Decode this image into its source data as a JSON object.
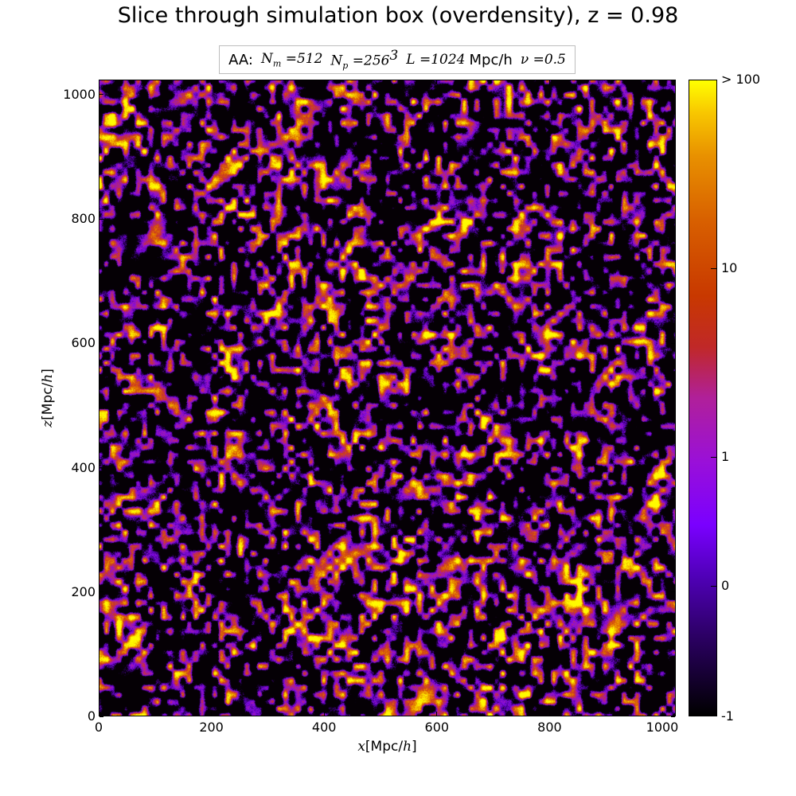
{
  "chart_data": {
    "type": "heatmap",
    "title": "Slice through simulation box (overdensity), z = 0.98",
    "legend": {
      "prefix": "AA:",
      "entries": [
        {
          "symbol": "N",
          "subscript": "m",
          "relation": "=",
          "value": "512"
        },
        {
          "symbol": "N",
          "subscript": "p",
          "relation": "=",
          "value": "256",
          "superscript": "3"
        },
        {
          "symbol": "L",
          "relation": "=",
          "value": "1024",
          "unit": "Mpc/h"
        },
        {
          "symbol": "ν",
          "relation": "=",
          "value": "0.5"
        }
      ],
      "placement": "top-center"
    },
    "xlabel": {
      "var": "x",
      "open": "[",
      "unit": "Mpc/",
      "unit_var": "h",
      "close": "]"
    },
    "ylabel": {
      "var": "z",
      "open": "[",
      "unit": "Mpc/",
      "unit_var": "h",
      "close": "]"
    },
    "xlim": [
      0,
      1024
    ],
    "ylim": [
      0,
      1024
    ],
    "xticks": [
      0,
      200,
      400,
      600,
      800,
      1000
    ],
    "yticks": [
      0,
      200,
      400,
      600,
      800,
      1000
    ],
    "xtick_labels": [
      "0",
      "200",
      "400",
      "600",
      "800",
      "1000"
    ],
    "ytick_labels": [
      "0",
      "200",
      "400",
      "600",
      "800",
      "1000"
    ],
    "colorbar": {
      "label": "",
      "ticks": [
        {
          "value": -1,
          "label": "-1",
          "fraction": 0.0
        },
        {
          "value": 0,
          "label": "0",
          "fraction": 0.205
        },
        {
          "value": 1,
          "label": "1",
          "fraction": 0.408
        },
        {
          "value": 10,
          "label": "10",
          "fraction": 0.704
        },
        {
          "value": 100,
          "label": "> 100",
          "fraction": 1.0
        }
      ],
      "colormap": "gnuplot"
    },
    "grid": false,
    "field_description_seed": 98
  }
}
